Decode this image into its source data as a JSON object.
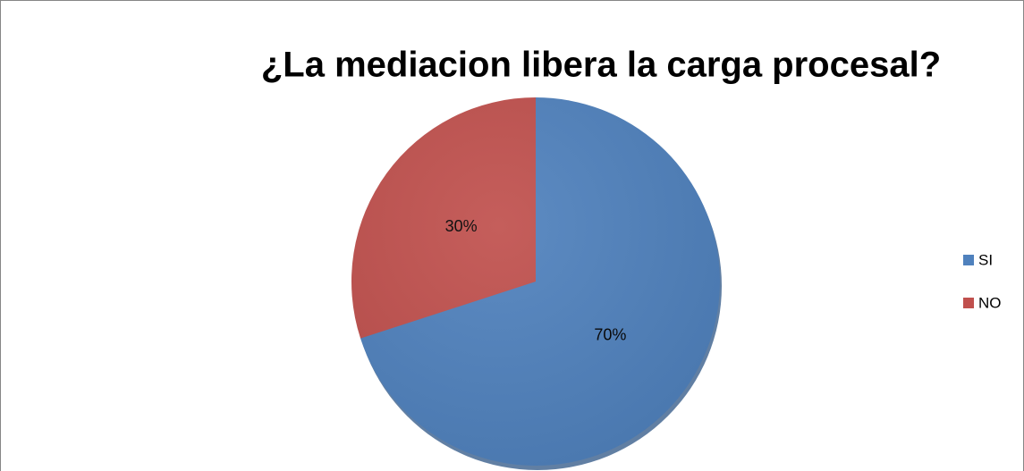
{
  "chart_data": {
    "type": "pie",
    "title": "¿La mediacion libera la carga procesal?",
    "categories": [
      "SI",
      "NO"
    ],
    "values": [
      70,
      30
    ],
    "value_labels": [
      "70%",
      "30%"
    ],
    "colors": [
      "#4f81bd",
      "#c0504d"
    ],
    "legend": "right"
  }
}
